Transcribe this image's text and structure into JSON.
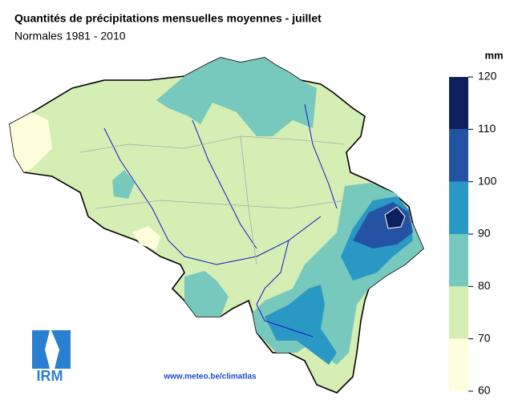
{
  "header": {
    "title": "Quantités de précipitations mensuelles moyennes - juillet",
    "subtitle": "Normales 1981 - 2010"
  },
  "legend": {
    "unit": "mm",
    "ticks": [
      60,
      70,
      80,
      90,
      100,
      110,
      120
    ],
    "colors": [
      "#ffffdd",
      "#d5eeb3",
      "#78c9bd",
      "#2a98c4",
      "#2453a3",
      "#0c205e"
    ]
  },
  "logo": "IRM",
  "source": "www.meteo.be/climatlas"
}
